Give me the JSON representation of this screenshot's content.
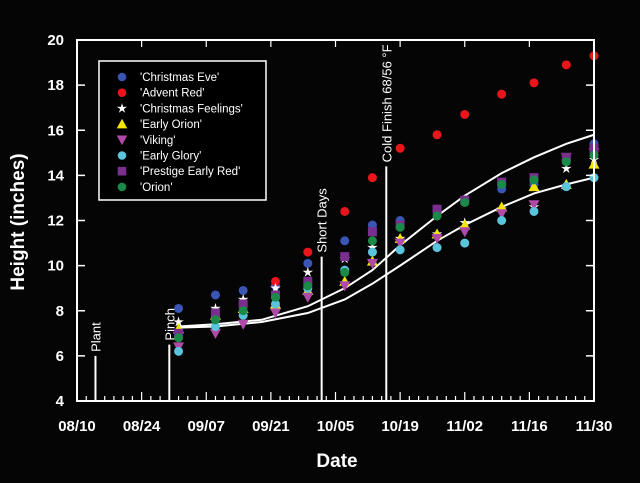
{
  "chart_data": {
    "type": "scatter",
    "title": "",
    "xlabel": "Date",
    "ylabel": "Height (inches)",
    "ylim": [
      4,
      20
    ],
    "yticks": [
      4,
      6,
      8,
      10,
      12,
      14,
      16,
      18,
      20
    ],
    "xlim_days_from_0810": [
      0,
      112
    ],
    "xticks": [
      "08/10",
      "08/24",
      "09/07",
      "09/21",
      "10/05",
      "10/19",
      "11/02",
      "11/16",
      "11/30"
    ],
    "grid": false,
    "legend_position": "upper-left (inside plot)",
    "x_dates": [
      "09/01",
      "09/09",
      "09/15",
      "09/22",
      "09/29",
      "10/07",
      "10/13",
      "10/19",
      "10/27",
      "11/02",
      "11/10",
      "11/17",
      "11/24",
      "11/30"
    ],
    "x_days": [
      22,
      30,
      36,
      43,
      50,
      58,
      64,
      70,
      78,
      84,
      92,
      99,
      106,
      112
    ],
    "series": [
      {
        "name": "'Christmas Eve'",
        "marker": "circle",
        "color": "#3a55b4",
        "values": [
          8.1,
          8.7,
          8.9,
          9.1,
          10.1,
          11.1,
          11.8,
          12.0,
          12.5,
          12.9,
          13.4,
          13.6,
          14.7,
          15.4
        ]
      },
      {
        "name": "'Advent Red'",
        "marker": "circle",
        "color": "#e8161b",
        "values": [
          null,
          null,
          null,
          9.3,
          10.6,
          12.4,
          13.9,
          15.2,
          15.8,
          16.7,
          17.6,
          18.1,
          18.9,
          19.3
        ]
      },
      {
        "name": "'Christmas Feelings'",
        "marker": "star",
        "color": "#ffffff",
        "values": [
          7.5,
          8.1,
          8.5,
          9.0,
          9.7,
          10.3,
          10.8,
          11.2,
          11.4,
          11.9,
          12.5,
          12.6,
          14.3,
          14.7
        ]
      },
      {
        "name": "'Early Orion'",
        "marker": "triangle-up",
        "color": "#f2e600",
        "values": [
          7.2,
          7.8,
          8.1,
          8.3,
          8.9,
          9.3,
          10.2,
          11.2,
          11.4,
          11.8,
          12.6,
          13.5,
          13.6,
          14.5
        ]
      },
      {
        "name": "'Viking'",
        "marker": "triangle-down",
        "color": "#b04aa8",
        "values": [
          6.4,
          7.0,
          7.4,
          7.9,
          8.6,
          9.1,
          10.1,
          11.0,
          11.2,
          11.5,
          12.3,
          12.7,
          14.8,
          15.0
        ]
      },
      {
        "name": "'Early Glory'",
        "marker": "circle",
        "color": "#5ac4dc",
        "values": [
          6.2,
          7.3,
          7.8,
          8.3,
          9.0,
          9.8,
          10.6,
          10.7,
          10.8,
          11.0,
          12.0,
          12.4,
          13.5,
          13.9
        ]
      },
      {
        "name": "'Prestige Early Red'",
        "marker": "square",
        "color": "#7a2e8e",
        "values": [
          7.0,
          7.9,
          8.3,
          8.7,
          9.3,
          10.4,
          11.5,
          11.8,
          12.5,
          12.9,
          13.7,
          13.9,
          14.8,
          15.2
        ]
      },
      {
        "name": "'Orion'",
        "marker": "circle",
        "color": "#1a8a48",
        "values": [
          6.8,
          7.6,
          8.0,
          8.6,
          9.1,
          9.7,
          11.1,
          11.7,
          12.2,
          12.8,
          13.6,
          13.8,
          14.6,
          14.9
        ]
      }
    ],
    "fit_curves": [
      {
        "name": "upper fit",
        "color": "#ffffff",
        "points": [
          [
            22,
            7.3
          ],
          [
            30,
            7.4
          ],
          [
            40,
            7.6
          ],
          [
            50,
            8.2
          ],
          [
            58,
            9.0
          ],
          [
            64,
            9.8
          ],
          [
            70,
            10.9
          ],
          [
            78,
            12.2
          ],
          [
            84,
            13.1
          ],
          [
            92,
            14.1
          ],
          [
            99,
            14.8
          ],
          [
            106,
            15.4
          ],
          [
            112,
            15.8
          ]
        ]
      },
      {
        "name": "lower fit",
        "color": "#ffffff",
        "points": [
          [
            22,
            7.25
          ],
          [
            30,
            7.3
          ],
          [
            40,
            7.5
          ],
          [
            50,
            7.9
          ],
          [
            58,
            8.5
          ],
          [
            64,
            9.2
          ],
          [
            70,
            10.0
          ],
          [
            78,
            11.1
          ],
          [
            84,
            11.8
          ],
          [
            92,
            12.6
          ],
          [
            99,
            13.2
          ],
          [
            106,
            13.6
          ],
          [
            112,
            13.9
          ]
        ]
      }
    ],
    "annotations": [
      {
        "label": "Plant",
        "day": 4,
        "y_bottom": 4,
        "y_top": 6.0
      },
      {
        "label": "Pinch",
        "day": 20,
        "y_bottom": 4,
        "y_top": 6.5
      },
      {
        "label": "Short Days",
        "day": 53,
        "y_bottom": 4,
        "y_top": 10.4
      },
      {
        "label": "Cold Finish 68/56 °F",
        "day": 67,
        "y_bottom": 4,
        "y_top": 14.4
      }
    ]
  }
}
